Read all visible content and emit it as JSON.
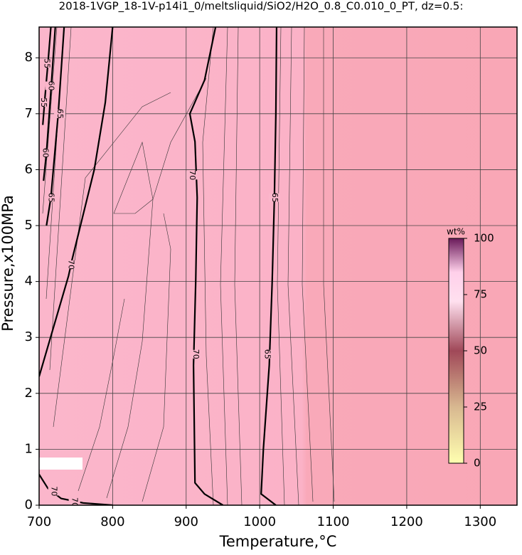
{
  "chart_data": {
    "type": "contour",
    "title": "2018-1VGP_18-1V-p14i1_0/meltsliquid/SiO2/H2O_0.8_C0.010_0_PT, dz=0.5:",
    "x_label": "Temperature,°C",
    "y_label": "Pressure,x100MPa",
    "xlim": [
      700,
      1350
    ],
    "ylim": [
      0,
      8.55
    ],
    "xticks": [
      700,
      800,
      900,
      1000,
      1100,
      1200,
      1300
    ],
    "yticks": [
      0,
      1,
      2,
      3,
      4,
      5,
      6,
      7,
      8
    ],
    "grid": true,
    "contours": [
      {
        "level": 70,
        "x": [
          700,
          720,
          740,
          745,
          760,
          775,
          790,
          800
        ],
        "y": [
          2.3,
          3.2,
          4.1,
          4.4,
          5.2,
          6.0,
          7.2,
          8.55
        ],
        "label_at": [
          [
            743,
            4.3
          ]
        ]
      },
      {
        "level": 70,
        "x": [
          940,
          925,
          905,
          912,
          915,
          913,
          910,
          912,
          925,
          950
        ],
        "y": [
          8.55,
          7.6,
          7.0,
          6.5,
          5.5,
          4.0,
          2.5,
          0.4,
          0.2,
          0
        ],
        "label_at": [
          [
            908,
            5.9
          ],
          [
            913,
            2.7
          ]
        ]
      },
      {
        "level": 65,
        "x": [
          1023,
          1022,
          1020,
          1017,
          1013,
          1005,
          1002,
          1022
        ],
        "y": [
          8.55,
          7.0,
          5.5,
          4.0,
          2.5,
          1.0,
          0.2,
          0
        ],
        "label_at": [
          [
            1020,
            5.5
          ],
          [
            1010,
            2.7
          ]
        ]
      },
      {
        "level": 70,
        "x": [
          700,
          712,
          730,
          760,
          800
        ],
        "y": [
          0.55,
          0.3,
          0.12,
          0.04,
          0
        ],
        "label_at": [
          [
            720,
            0.25
          ],
          [
            748,
            0.05
          ]
        ]
      },
      {
        "level": 55,
        "x": [
          705,
          708,
          712,
          716
        ],
        "y": [
          6.8,
          7.3,
          7.9,
          8.55
        ],
        "label_at": [
          [
            710,
            7.9
          ],
          [
            706,
            7.2
          ]
        ]
      },
      {
        "level": 60,
        "x": [
          706,
          710,
          716,
          722
        ],
        "y": [
          5.8,
          6.3,
          7.4,
          8.55
        ],
        "label_at": [
          [
            716,
            7.5
          ],
          [
            708,
            6.3
          ]
        ]
      },
      {
        "level": 65,
        "x": [
          710,
          716,
          726,
          734
        ],
        "y": [
          5.0,
          5.5,
          7.0,
          8.55
        ],
        "label_at": [
          [
            728,
            7.0
          ],
          [
            716,
            5.5
          ]
        ]
      }
    ],
    "colorbar": {
      "label": "wt%",
      "clim": [
        0,
        100
      ],
      "ticks": [
        0,
        25,
        50,
        75,
        100
      ]
    }
  }
}
